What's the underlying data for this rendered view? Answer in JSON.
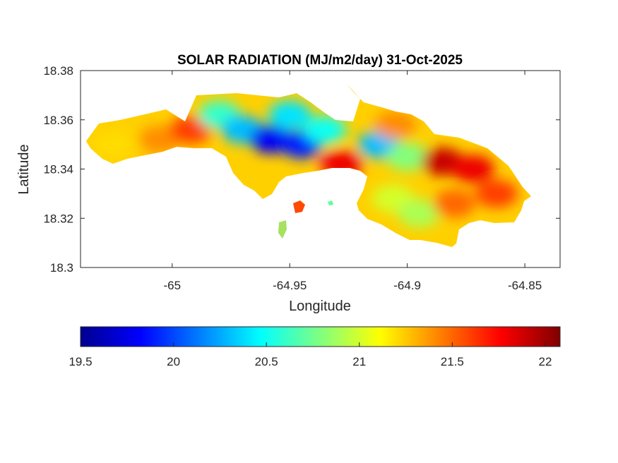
{
  "chart_data": {
    "type": "heatmap",
    "title": "SOLAR RADIATION (MJ/m2/day) 31-Oct-2025",
    "xlabel": "Longitude",
    "ylabel": "Latitude",
    "xlim": [
      -65.039,
      -64.835
    ],
    "ylim": [
      18.3,
      18.38
    ],
    "xticks": [
      -65,
      -64.95,
      -64.9,
      -64.85
    ],
    "xtick_labels": [
      "-65",
      "-64.95",
      "-64.9",
      "-64.85"
    ],
    "yticks": [
      18.3,
      18.32,
      18.34,
      18.36,
      18.38
    ],
    "ytick_labels": [
      "18.3",
      "18.32",
      "18.34",
      "18.36",
      "18.38"
    ],
    "grid": false,
    "colormap": "jet",
    "colorbar": {
      "orientation": "horizontal",
      "placement": "below",
      "range": [
        19.5,
        22.08
      ],
      "ticks": [
        19.5,
        20,
        20.5,
        21,
        21.5,
        22
      ],
      "tick_labels": [
        "19.5",
        "20",
        "20.5",
        "21",
        "21.5",
        "22"
      ]
    },
    "regions": [
      {
        "lon": -65.025,
        "lat": 18.35,
        "value": 21.2
      },
      {
        "lon": -65.005,
        "lat": 18.352,
        "value": 21.4
      },
      {
        "lon": -64.992,
        "lat": 18.356,
        "value": 21.6
      },
      {
        "lon": -64.98,
        "lat": 18.362,
        "value": 20.6
      },
      {
        "lon": -64.97,
        "lat": 18.356,
        "value": 20.3
      },
      {
        "lon": -64.958,
        "lat": 18.352,
        "value": 19.8
      },
      {
        "lon": -64.945,
        "lat": 18.35,
        "value": 19.9
      },
      {
        "lon": -64.95,
        "lat": 18.362,
        "value": 20.4
      },
      {
        "lon": -64.935,
        "lat": 18.356,
        "value": 20.5
      },
      {
        "lon": -64.928,
        "lat": 18.342,
        "value": 21.8
      },
      {
        "lon": -64.912,
        "lat": 18.35,
        "value": 20.3
      },
      {
        "lon": -64.9,
        "lat": 18.345,
        "value": 20.8
      },
      {
        "lon": -64.885,
        "lat": 18.343,
        "value": 21.9
      },
      {
        "lon": -64.872,
        "lat": 18.34,
        "value": 21.8
      },
      {
        "lon": -64.906,
        "lat": 18.328,
        "value": 21.0
      },
      {
        "lon": -64.895,
        "lat": 18.322,
        "value": 20.9
      },
      {
        "lon": -64.88,
        "lat": 18.326,
        "value": 21.5
      },
      {
        "lon": -64.862,
        "lat": 18.33,
        "value": 21.6
      },
      {
        "lon": -64.905,
        "lat": 18.358,
        "value": 21.4
      }
    ]
  }
}
